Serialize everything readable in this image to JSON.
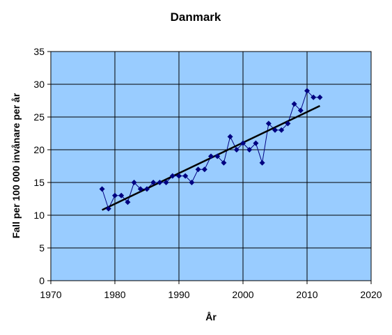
{
  "chart_data": {
    "type": "scatter",
    "title": "Danmark",
    "xlabel": "År",
    "ylabel": "Fall per 100 000 invånare per år",
    "xlim": [
      1970,
      2020
    ],
    "ylim": [
      0,
      35
    ],
    "x_ticks": [
      "1970",
      "1980",
      "1990",
      "2000",
      "2010",
      "2020"
    ],
    "y_ticks": [
      "0",
      "5",
      "10",
      "15",
      "20",
      "25",
      "30",
      "35"
    ],
    "grid": true,
    "legend": "none",
    "colors": {
      "plot_background": "#99CCFF",
      "marker": "#000080",
      "connector_line": "#000080",
      "trendline": "#000000",
      "grid": "#000000"
    },
    "series": [
      {
        "marker": "diamond",
        "x": [
          1978,
          1979,
          1980,
          1981,
          1982,
          1983,
          1984,
          1985,
          1986,
          1987,
          1988,
          1989,
          1990,
          1991,
          1992,
          1993,
          1994,
          1995,
          1996,
          1997,
          1998,
          1999,
          2000,
          2001,
          2002,
          2003,
          2004,
          2005,
          2006,
          2007,
          2008,
          2009,
          2010,
          2011,
          2012
        ],
        "y": [
          14,
          11,
          13,
          13,
          12,
          15,
          14,
          14,
          15,
          15,
          15,
          16,
          16,
          16,
          15,
          17,
          17,
          19,
          19,
          18,
          22,
          20,
          21,
          20,
          21,
          18,
          24,
          23,
          23,
          24,
          27,
          26,
          29,
          28,
          28
        ]
      }
    ],
    "trendline": {
      "type": "linear",
      "x": [
        1978,
        2012
      ],
      "y": [
        10.8,
        26.7
      ]
    }
  }
}
